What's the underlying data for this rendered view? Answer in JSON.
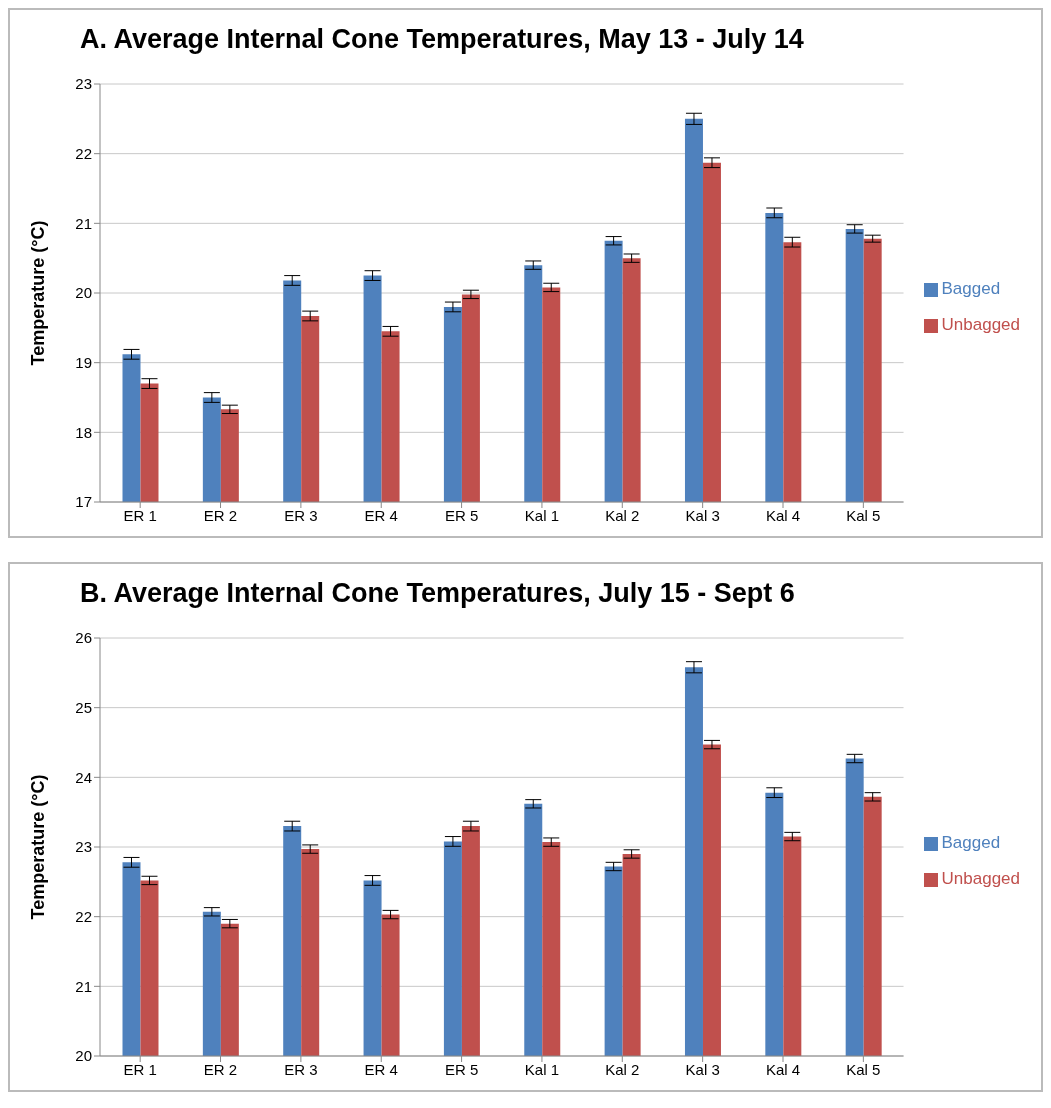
{
  "chart_data": [
    {
      "type": "bar",
      "title": "A. Average Internal Cone Temperatures, May 13 - July 14",
      "ylabel": "Temperature (°C)",
      "categories": [
        "ER 1",
        "ER 2",
        "ER 3",
        "ER 4",
        "ER 5",
        "Kal 1",
        "Kal 2",
        "Kal 3",
        "Kal 4",
        "Kal 5"
      ],
      "series": [
        {
          "name": "Bagged",
          "color": "#4f81bd",
          "values": [
            19.12,
            18.5,
            20.18,
            20.25,
            19.8,
            20.4,
            20.75,
            22.5,
            21.15,
            20.92
          ],
          "errors": [
            0.07,
            0.07,
            0.07,
            0.07,
            0.07,
            0.06,
            0.06,
            0.08,
            0.07,
            0.06
          ]
        },
        {
          "name": "Unbagged",
          "color": "#c0504d",
          "values": [
            18.7,
            18.33,
            19.67,
            19.45,
            19.98,
            20.08,
            20.5,
            21.87,
            20.73,
            20.78
          ],
          "errors": [
            0.07,
            0.06,
            0.07,
            0.07,
            0.06,
            0.06,
            0.06,
            0.07,
            0.07,
            0.05
          ]
        }
      ],
      "ylim": [
        17,
        23
      ],
      "yticks": [
        17,
        18,
        19,
        20,
        21,
        22,
        23
      ],
      "grid": "y",
      "legend": "right"
    },
    {
      "type": "bar",
      "title": "B. Average Internal Cone Temperatures, July 15 - Sept 6",
      "ylabel": "Temperature (°C)",
      "categories": [
        "ER 1",
        "ER 2",
        "ER 3",
        "ER 4",
        "ER 5",
        "Kal 1",
        "Kal 2",
        "Kal 3",
        "Kal 4",
        "Kal 5"
      ],
      "series": [
        {
          "name": "Bagged",
          "color": "#4f81bd",
          "values": [
            22.78,
            22.07,
            23.3,
            22.52,
            23.08,
            23.62,
            22.72,
            25.58,
            23.78,
            24.27
          ],
          "errors": [
            0.07,
            0.06,
            0.07,
            0.07,
            0.07,
            0.06,
            0.06,
            0.08,
            0.07,
            0.06
          ]
        },
        {
          "name": "Unbagged",
          "color": "#c0504d",
          "values": [
            22.52,
            21.9,
            22.97,
            22.03,
            23.3,
            23.07,
            22.9,
            24.47,
            23.15,
            23.72
          ],
          "errors": [
            0.06,
            0.06,
            0.06,
            0.06,
            0.07,
            0.06,
            0.06,
            0.06,
            0.06,
            0.06
          ]
        }
      ],
      "ylim": [
        20,
        26
      ],
      "yticks": [
        20,
        21,
        22,
        23,
        24,
        25,
        26
      ],
      "grid": "y",
      "legend": "right"
    }
  ]
}
